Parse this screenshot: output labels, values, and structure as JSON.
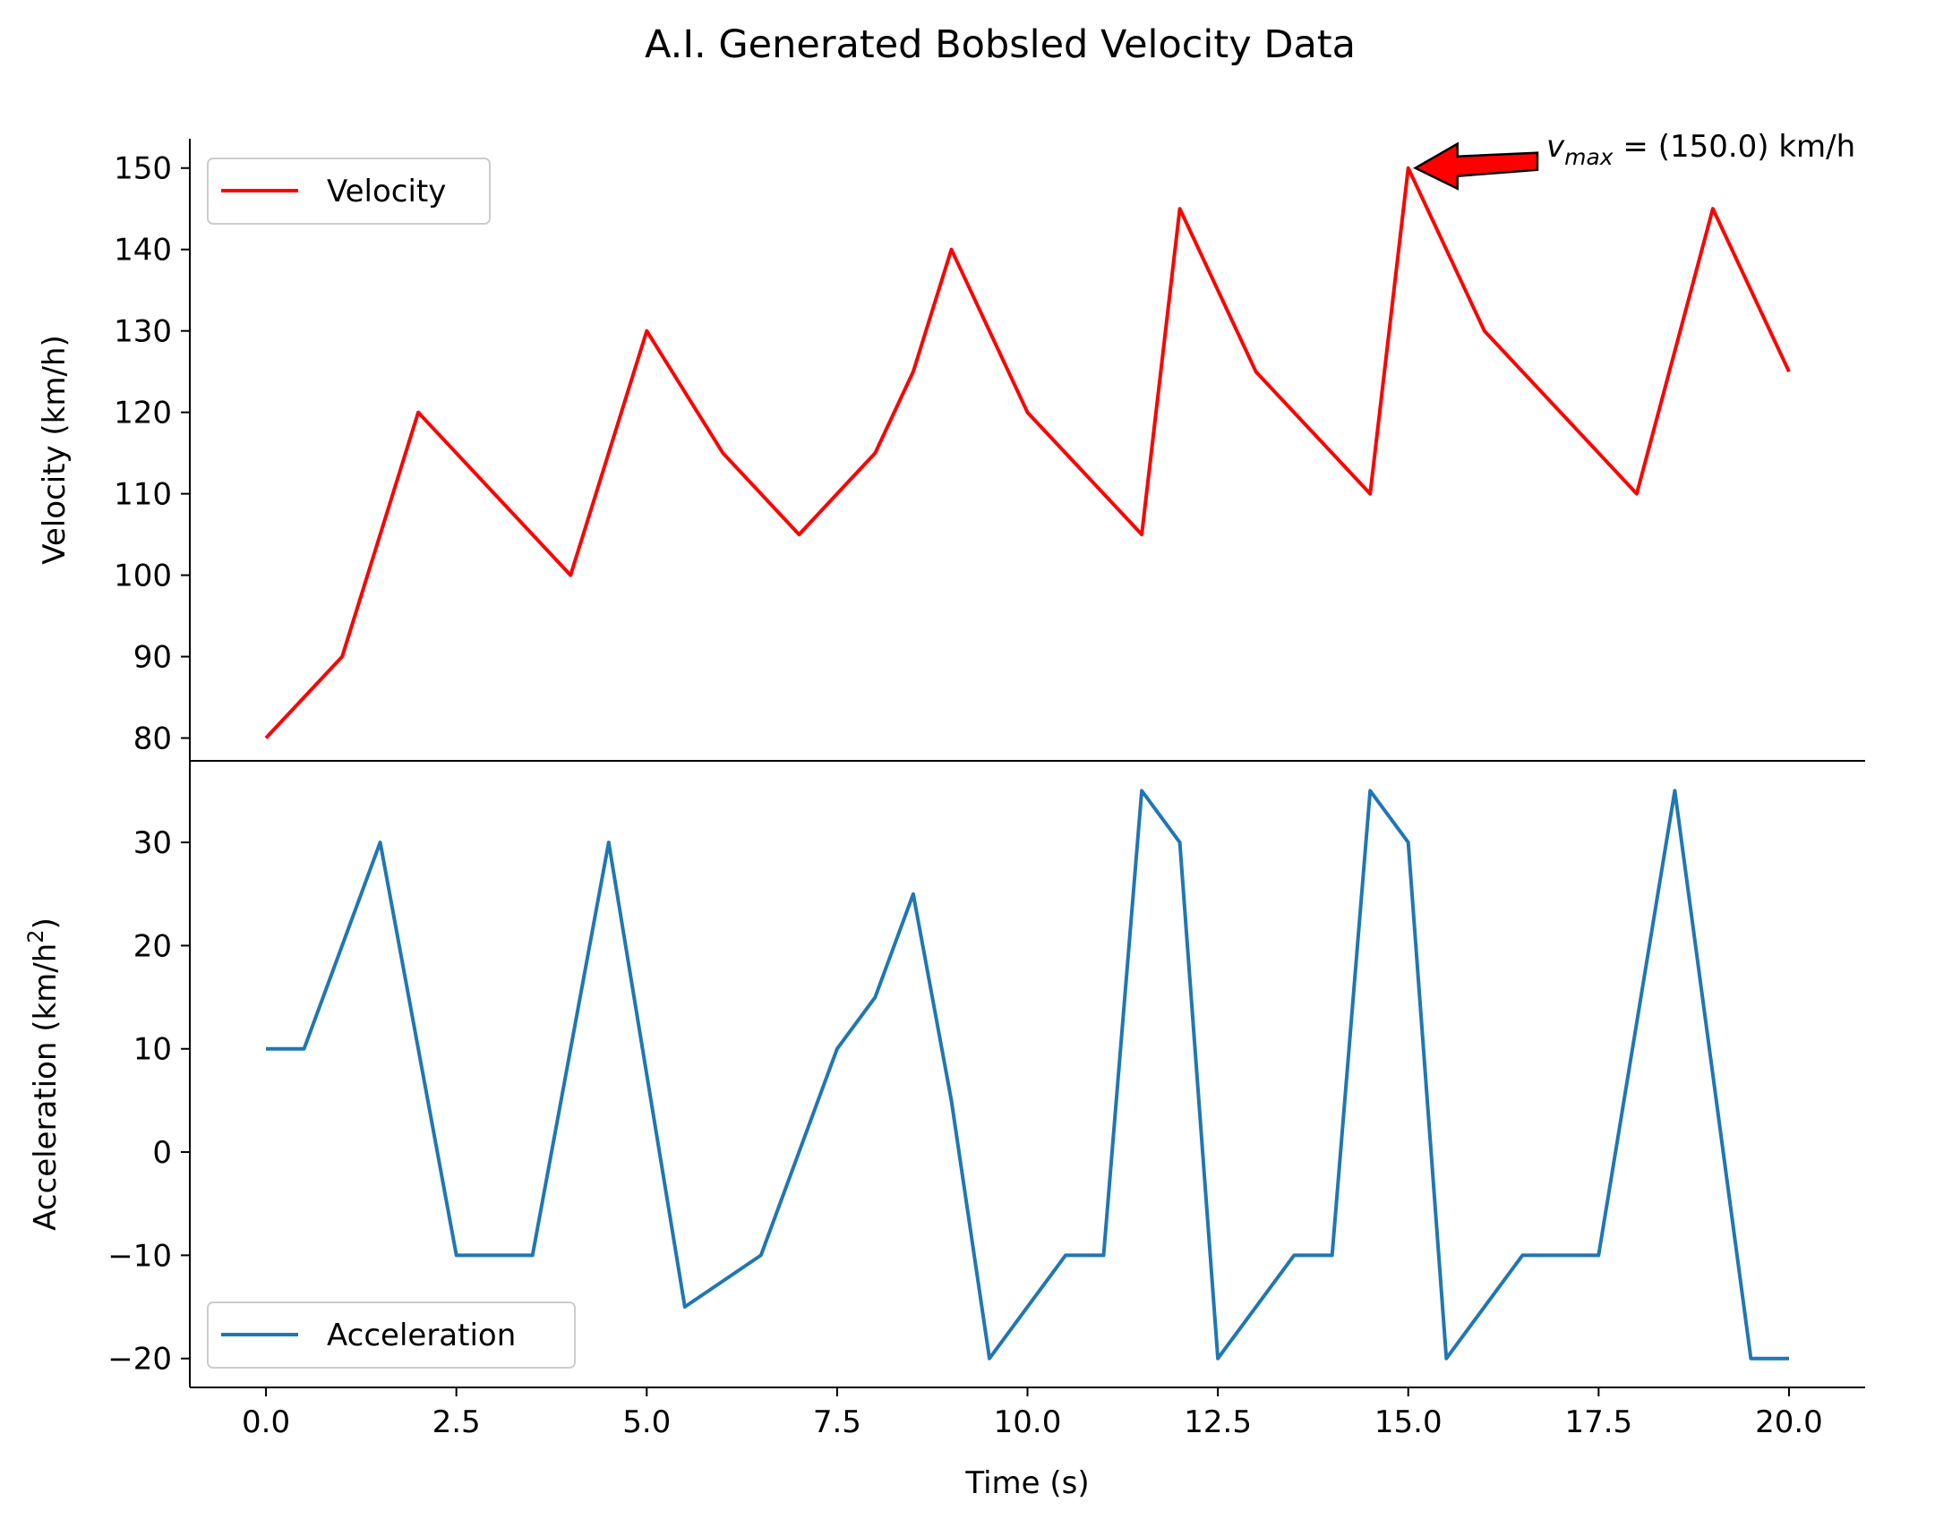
{
  "figure": {
    "title": "A.I. Generated Bobsled Velocity Data"
  },
  "colors": {
    "velocity": "#ff0000",
    "acceleration": "#1f77b4",
    "arrow_fill": "#ff0000",
    "arrow_edge": "#000000",
    "axis": "#000000",
    "legend_edge": "#cccccc"
  },
  "chart_data": [
    {
      "type": "line",
      "panel": "top",
      "xlim": [
        -1,
        21
      ],
      "ylim": [
        77.2,
        153.6
      ],
      "ylabel": "Velocity (km/h)",
      "yticks": [
        80,
        90,
        100,
        110,
        120,
        130,
        140,
        150
      ],
      "ytick_labels": [
        "80",
        "90",
        "100",
        "110",
        "120",
        "130",
        "140",
        "150"
      ],
      "legend": "upper-left",
      "series": [
        {
          "name": "Velocity",
          "x": [
            0,
            1,
            2,
            4,
            5,
            6,
            7,
            8,
            8.5,
            9,
            10,
            11.5,
            12,
            13,
            14.5,
            15,
            16,
            18,
            19,
            20
          ],
          "y": [
            80,
            90,
            120,
            100,
            130,
            115,
            105,
            115,
            125,
            140,
            120,
            105,
            145,
            125,
            110,
            150,
            130,
            110,
            145,
            125
          ]
        }
      ],
      "annotation": {
        "text_v": "v",
        "text_sub": "max",
        "text_rest": " = (150.0) km/h",
        "point": [
          15,
          150
        ]
      }
    },
    {
      "type": "line",
      "panel": "bottom",
      "xlim": [
        -1,
        21
      ],
      "ylim": [
        -22.8,
        37.9
      ],
      "ylabel": "Acceleration (km/h",
      "ylabel_sup": "2",
      "ylabel_end": ")",
      "xlabel": "Time (s)",
      "yticks": [
        -20,
        -10,
        0,
        10,
        20,
        30
      ],
      "ytick_labels": [
        "−20",
        "−10",
        "0",
        "10",
        "20",
        "30"
      ],
      "xticks": [
        0,
        2.5,
        5,
        7.5,
        10,
        12.5,
        15,
        17.5,
        20
      ],
      "xtick_labels": [
        "0.0",
        "2.5",
        "5.0",
        "7.5",
        "10.0",
        "12.5",
        "15.0",
        "17.5",
        "20.0"
      ],
      "legend": "lower-left",
      "series": [
        {
          "name": "Acceleration",
          "x": [
            0,
            0.5,
            1,
            1.5,
            2.5,
            3.5,
            4.5,
            5.5,
            6.5,
            7.5,
            8,
            8.5,
            9,
            9.5,
            10.5,
            11,
            11.5,
            12,
            12.5,
            13.5,
            14,
            14.5,
            15,
            15.5,
            16.5,
            17.5,
            18.5,
            19.5,
            20
          ],
          "y": [
            10,
            10,
            20,
            30,
            -10,
            -10,
            30,
            -15,
            -10,
            10,
            15,
            25,
            5,
            -20,
            -10,
            -10,
            35,
            30,
            -20,
            -10,
            -10,
            35,
            30,
            -20,
            -10,
            -10,
            35,
            -20,
            -20
          ]
        }
      ]
    }
  ]
}
